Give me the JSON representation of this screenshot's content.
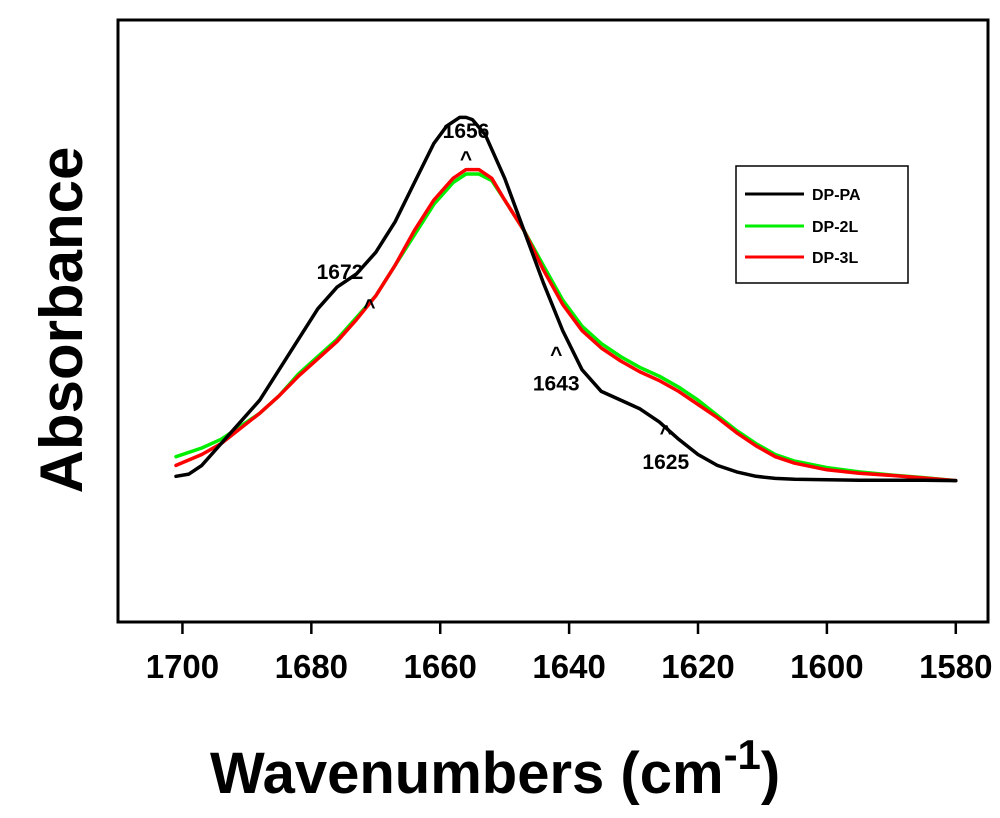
{
  "chart_data": {
    "type": "line",
    "title": "",
    "xlabel": "Wavenumbers (cm",
    "xlabel_sup": "-1",
    "xlabel_close": ")",
    "ylabel": "Absorbance",
    "xlim": [
      1710,
      1575
    ],
    "ylim": [
      0,
      1
    ],
    "x_reversed": true,
    "y_ticks_shown": false,
    "grid": false,
    "legend_position": "top-right",
    "xticks": [
      1700,
      1680,
      1660,
      1640,
      1620,
      1600,
      1580
    ],
    "xtick_labels": [
      "1700",
      "1680",
      "1660",
      "1640",
      "1620",
      "1600",
      "1580"
    ],
    "colors": {
      "DP-PA": "#000000",
      "DP-2L": "#00ee00",
      "DP-3L": "#ff0000"
    },
    "series": [
      {
        "name": "DP-PA",
        "x": [
          1701,
          1699,
          1697,
          1694,
          1691,
          1688,
          1685,
          1682,
          1679,
          1676,
          1673,
          1670,
          1667,
          1664,
          1661,
          1659,
          1657,
          1656,
          1655,
          1653,
          1650,
          1647,
          1644,
          1641,
          1638,
          1635,
          1632,
          1629,
          1626,
          1623,
          1620,
          1617,
          1614,
          1611,
          1608,
          1605,
          1600,
          1595,
          1590,
          1585,
          1580
        ],
        "y": [
          0.135,
          0.14,
          0.16,
          0.21,
          0.26,
          0.31,
          0.38,
          0.45,
          0.52,
          0.57,
          0.6,
          0.65,
          0.72,
          0.81,
          0.9,
          0.94,
          0.96,
          0.96,
          0.955,
          0.92,
          0.82,
          0.7,
          0.58,
          0.47,
          0.38,
          0.33,
          0.31,
          0.29,
          0.26,
          0.22,
          0.185,
          0.16,
          0.145,
          0.135,
          0.13,
          0.128,
          0.127,
          0.126,
          0.126,
          0.126,
          0.125
        ]
      },
      {
        "name": "DP-2L",
        "x": [
          1701,
          1697,
          1694,
          1691,
          1688,
          1685,
          1682,
          1679,
          1676,
          1673,
          1670,
          1667,
          1664,
          1661,
          1658,
          1656,
          1654,
          1652,
          1650,
          1647,
          1644,
          1641,
          1638,
          1635,
          1632,
          1629,
          1626,
          1623,
          1620,
          1617,
          1614,
          1611,
          1608,
          1605,
          1600,
          1595,
          1590,
          1585,
          1580
        ],
        "y": [
          0.18,
          0.2,
          0.22,
          0.25,
          0.28,
          0.32,
          0.37,
          0.41,
          0.45,
          0.5,
          0.55,
          0.62,
          0.69,
          0.76,
          0.81,
          0.83,
          0.83,
          0.815,
          0.77,
          0.7,
          0.62,
          0.54,
          0.48,
          0.44,
          0.41,
          0.385,
          0.365,
          0.34,
          0.31,
          0.275,
          0.24,
          0.21,
          0.185,
          0.17,
          0.155,
          0.145,
          0.138,
          0.132,
          0.125
        ]
      },
      {
        "name": "DP-3L",
        "x": [
          1701,
          1697,
          1694,
          1691,
          1688,
          1685,
          1682,
          1679,
          1676,
          1673,
          1670,
          1667,
          1664,
          1661,
          1658,
          1656,
          1654,
          1652,
          1650,
          1647,
          1644,
          1641,
          1638,
          1635,
          1632,
          1629,
          1626,
          1623,
          1620,
          1617,
          1614,
          1611,
          1608,
          1605,
          1600,
          1595,
          1590,
          1585,
          1580
        ],
        "y": [
          0.16,
          0.185,
          0.21,
          0.245,
          0.28,
          0.32,
          0.365,
          0.405,
          0.445,
          0.495,
          0.55,
          0.62,
          0.7,
          0.77,
          0.82,
          0.84,
          0.84,
          0.82,
          0.77,
          0.7,
          0.61,
          0.53,
          0.47,
          0.43,
          0.4,
          0.375,
          0.355,
          0.33,
          0.3,
          0.27,
          0.235,
          0.205,
          0.18,
          0.165,
          0.15,
          0.142,
          0.137,
          0.131,
          0.125
        ]
      }
    ],
    "annotations": [
      {
        "label": "1656",
        "marker": "^",
        "x": 1656,
        "marker_y": 0.89,
        "label_side": "above"
      },
      {
        "label": "1672",
        "marker": "^",
        "x": 1671,
        "marker_y": 0.55,
        "label_side": "above-left"
      },
      {
        "label": "1643",
        "marker": "^",
        "x": 1642,
        "marker_y": 0.44,
        "label_side": "below"
      },
      {
        "label": "1625",
        "marker": "^",
        "x": 1625,
        "marker_y": 0.26,
        "label_side": "below"
      }
    ]
  }
}
